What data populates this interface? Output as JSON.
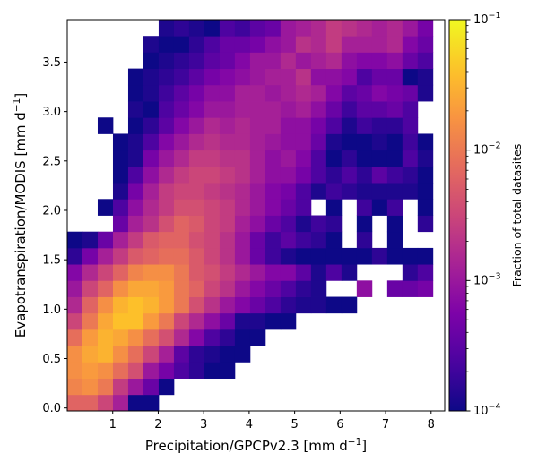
{
  "chart_data": {
    "type": "heatmap",
    "title": "",
    "xlabel": {
      "base": "Precipitation/GPCPv2.3 [mm d",
      "sup": "−1",
      "tail": "]"
    },
    "ylabel": {
      "base": "Evapotranspiration/MODIS [mm d",
      "sup": "−1",
      "tail": "]"
    },
    "x_range": [
      0.0,
      8.3
    ],
    "y_range": [
      -0.03,
      3.93
    ],
    "bin_width_x": 0.335,
    "bin_width_y": 0.165,
    "x_ticks": [
      1,
      2,
      3,
      4,
      5,
      6,
      7,
      8
    ],
    "x_tick_labels": [
      "1",
      "2",
      "3",
      "4",
      "5",
      "6",
      "7",
      "8"
    ],
    "y_ticks": [
      0.0,
      0.5,
      1.0,
      1.5,
      2.0,
      2.5,
      3.0,
      3.5
    ],
    "y_tick_labels": [
      "0.0",
      "0.5",
      "1.0",
      "1.5",
      "2.0",
      "2.5",
      "3.0",
      "3.5"
    ],
    "colorbar": {
      "label": "Fraction of total datasites",
      "scale": "log",
      "range": [
        0.0001,
        0.1
      ],
      "ticks": [
        {
          "value": 0.1,
          "base": "10",
          "exp": "−1"
        },
        {
          "value": 0.01,
          "base": "10",
          "exp": "−2"
        },
        {
          "value": 0.001,
          "base": "10",
          "exp": "−3"
        },
        {
          "value": 0.0001,
          "base": "10",
          "exp": "−4"
        }
      ],
      "colormap": "plasma"
    },
    "description_of_cells": "log10 fraction per bin; rows bottom→top (y from -0.03 step 0.165), columns left→right (x from 0 step 0.335); null = empty bin",
    "cells": [
      [
        -2.2,
        -2.2,
        -2.5,
        -2.9,
        -4.0,
        -4.0,
        null,
        null,
        null,
        null,
        null,
        null,
        null,
        null,
        null,
        null,
        null,
        null,
        null,
        null,
        null,
        null,
        null,
        null
      ],
      [
        -1.9,
        -1.8,
        -2.0,
        -2.6,
        -3.0,
        -3.4,
        -4.0,
        null,
        null,
        null,
        null,
        null,
        null,
        null,
        null,
        null,
        null,
        null,
        null,
        null,
        null,
        null,
        null,
        null
      ],
      [
        -1.8,
        -1.7,
        -1.8,
        -2.1,
        -2.4,
        -3.0,
        -3.3,
        -3.6,
        -3.8,
        -4.0,
        -4.0,
        null,
        null,
        null,
        null,
        null,
        null,
        null,
        null,
        null,
        null,
        null,
        null,
        null
      ],
      [
        -1.8,
        -1.6,
        -1.5,
        -1.8,
        -2.1,
        -2.5,
        -2.9,
        -3.5,
        -3.8,
        -3.9,
        -4.0,
        -4.0,
        null,
        null,
        null,
        null,
        null,
        null,
        null,
        null,
        null,
        null,
        null,
        null
      ],
      [
        -2.1,
        -1.7,
        -1.5,
        -1.6,
        -1.8,
        -2.1,
        -2.4,
        -2.8,
        -3.2,
        -3.6,
        -3.8,
        -4.0,
        -4.0,
        null,
        null,
        null,
        null,
        null,
        null,
        null,
        null,
        null,
        null,
        null
      ],
      [
        -2.5,
        -2.0,
        -1.6,
        -1.4,
        -1.4,
        -1.7,
        -2.0,
        -2.5,
        -2.8,
        -3.1,
        -3.4,
        -3.9,
        -3.9,
        -4.0,
        -4.0,
        null,
        null,
        null,
        null,
        null,
        null,
        null,
        null,
        null
      ],
      [
        -2.8,
        -2.2,
        -1.8,
        -1.5,
        -1.4,
        -1.5,
        -1.7,
        -2.0,
        -2.4,
        -2.7,
        -3.0,
        -3.2,
        -3.4,
        -3.6,
        -3.8,
        -3.9,
        -3.9,
        -4.0,
        -4.0,
        null,
        null,
        null,
        null,
        null
      ],
      [
        -3.0,
        -2.5,
        -2.2,
        -1.8,
        -1.6,
        -1.6,
        -1.7,
        -2.0,
        -2.2,
        -2.5,
        -2.7,
        -3.0,
        -3.2,
        -3.4,
        -3.6,
        -3.8,
        -3.9,
        null,
        null,
        -3.1,
        null,
        -3.4,
        -3.4,
        -3.3
      ],
      [
        -3.2,
        -2.8,
        -2.5,
        -2.2,
        -1.9,
        -1.8,
        -1.8,
        -2.0,
        -2.3,
        -2.4,
        -2.6,
        -2.8,
        -3.0,
        -3.2,
        -3.2,
        -3.5,
        -3.9,
        -3.6,
        -3.9,
        null,
        null,
        null,
        -3.8,
        -3.6
      ],
      [
        -3.8,
        -3.3,
        -2.9,
        -2.6,
        -2.3,
        -2.2,
        -2.1,
        -2.1,
        -2.3,
        -2.5,
        -2.7,
        -3.0,
        -3.4,
        -3.7,
        -3.9,
        -4.0,
        -4.0,
        -4.0,
        -4.0,
        -4.0,
        -3.8,
        -4.0,
        -4.0,
        -4.0
      ],
      [
        -4.0,
        -3.9,
        -3.4,
        -2.9,
        -2.6,
        -2.3,
        -2.2,
        -2.2,
        -2.4,
        -2.5,
        -2.7,
        -3.0,
        -3.4,
        -3.7,
        -3.5,
        -3.7,
        -3.8,
        -4.0,
        null,
        -3.8,
        null,
        -4.0,
        null,
        null
      ],
      [
        null,
        null,
        null,
        -3.4,
        -2.9,
        -2.7,
        -2.4,
        -2.2,
        -2.3,
        -2.5,
        -2.6,
        -2.9,
        -3.1,
        -3.4,
        -3.6,
        -3.9,
        -3.7,
        -3.8,
        null,
        -4.0,
        null,
        -4.0,
        null,
        -3.8
      ],
      [
        null,
        null,
        -4.0,
        -3.6,
        -3.1,
        -2.8,
        -2.6,
        -2.4,
        -2.4,
        -2.5,
        -2.6,
        -2.8,
        -3.0,
        -3.2,
        -3.4,
        -3.6,
        null,
        -4.0,
        null,
        -3.7,
        -4.0,
        -3.7,
        null,
        -4.0
      ],
      [
        null,
        null,
        null,
        -3.9,
        -3.3,
        -2.9,
        -2.6,
        -2.5,
        -2.5,
        -2.6,
        -2.7,
        -2.8,
        -3.0,
        -3.2,
        -3.3,
        -3.6,
        -3.9,
        -3.7,
        -3.8,
        -3.9,
        -3.9,
        -3.9,
        -3.9,
        -4.0
      ],
      [
        null,
        null,
        null,
        -4.0,
        -3.6,
        -3.1,
        -2.8,
        -2.6,
        -2.5,
        -2.5,
        -2.6,
        -2.7,
        -2.9,
        -3.1,
        -3.1,
        -3.3,
        -3.6,
        -3.8,
        -3.6,
        -3.8,
        -3.5,
        -3.7,
        -3.8,
        -4.0
      ],
      [
        null,
        null,
        null,
        -4.0,
        -3.9,
        -3.3,
        -3.0,
        -2.8,
        -2.6,
        -2.6,
        -2.7,
        -2.7,
        -2.9,
        -3.1,
        -3.0,
        -3.2,
        -3.6,
        -4.0,
        -3.8,
        -4.0,
        -4.0,
        -4.0,
        -3.6,
        -3.9
      ],
      [
        null,
        null,
        null,
        -4.0,
        -3.9,
        -3.6,
        -3.2,
        -3.0,
        -2.8,
        -2.7,
        -2.8,
        -2.8,
        -2.9,
        -3.0,
        -3.1,
        -3.1,
        -3.4,
        -3.9,
        -4.0,
        -4.0,
        -3.9,
        -4.0,
        -3.7,
        -4.0
      ],
      [
        null,
        null,
        -4.0,
        null,
        -4.0,
        -3.8,
        -3.5,
        -3.2,
        -3.0,
        -2.8,
        -2.9,
        -2.8,
        -2.9,
        -2.9,
        -3.1,
        -3.1,
        -3.3,
        -3.6,
        -3.9,
        -3.7,
        -3.8,
        -3.8,
        -3.6,
        null
      ],
      [
        null,
        null,
        null,
        null,
        -3.9,
        -4.0,
        -3.6,
        -3.4,
        -3.2,
        -3.0,
        -3.0,
        -2.9,
        -2.9,
        -2.9,
        -3.0,
        -2.9,
        -3.1,
        -3.4,
        -3.7,
        -3.5,
        -3.5,
        -3.4,
        -3.6,
        null
      ],
      [
        null,
        null,
        null,
        null,
        -4.0,
        -3.9,
        -3.7,
        -3.5,
        -3.3,
        -3.1,
        -3.1,
        -2.9,
        -2.9,
        -3.0,
        -2.9,
        -2.8,
        -2.9,
        -3.2,
        -3.5,
        -3.4,
        -3.2,
        -3.3,
        -3.4,
        -3.9
      ],
      [
        null,
        null,
        null,
        null,
        -4.0,
        -3.9,
        -3.8,
        -3.7,
        -3.5,
        -3.3,
        -3.2,
        -3.1,
        -3.0,
        -2.9,
        -2.9,
        -2.7,
        -3.1,
        -3.1,
        -3.2,
        -3.6,
        -3.4,
        -3.4,
        -4.0,
        -3.9
      ],
      [
        null,
        null,
        null,
        null,
        null,
        -4.0,
        -3.9,
        -3.8,
        -3.7,
        -3.5,
        -3.4,
        -3.2,
        -3.0,
        -3.0,
        -2.8,
        -3.0,
        -2.9,
        -2.8,
        -3.1,
        -3.2,
        -3.2,
        -3.1,
        -3.4,
        -3.6
      ],
      [
        null,
        null,
        null,
        null,
        null,
        -3.9,
        -4.0,
        -4.0,
        -3.8,
        -3.6,
        -3.4,
        -3.4,
        -3.3,
        -3.1,
        -3.0,
        -2.7,
        -2.8,
        -2.6,
        -2.9,
        -2.9,
        -2.9,
        -2.8,
        -3.2,
        -3.4
      ],
      [
        null,
        null,
        null,
        null,
        null,
        null,
        -3.9,
        -3.8,
        -3.9,
        -4.0,
        -3.6,
        -3.7,
        -3.5,
        -3.4,
        -3.0,
        -2.9,
        -2.8,
        -2.6,
        -2.7,
        -2.8,
        -2.9,
        -2.8,
        -3.0,
        -3.3
      ]
    ]
  }
}
